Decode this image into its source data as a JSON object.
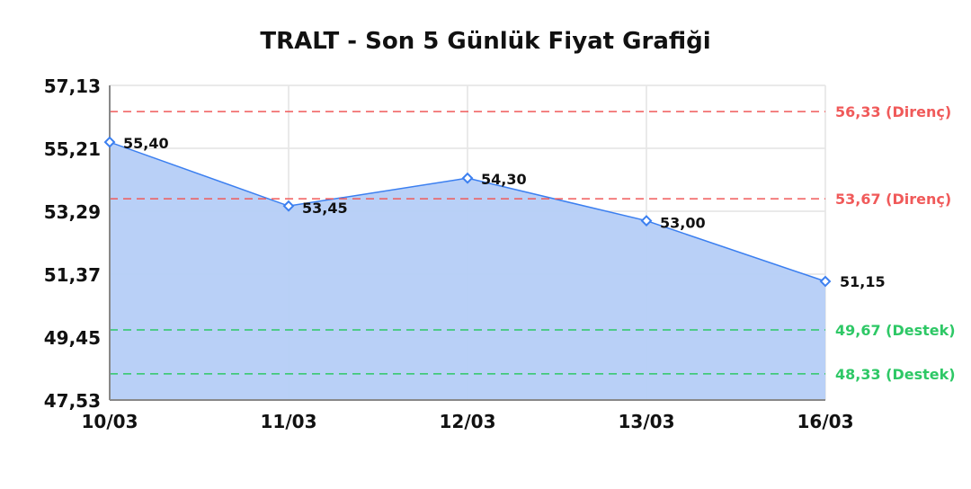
{
  "chart_data": {
    "type": "area",
    "title": "TRALT - Son 5 Günlük Fiyat Grafiği",
    "categories": [
      "10/03",
      "11/03",
      "12/03",
      "13/03",
      "16/03"
    ],
    "values": [
      55.4,
      53.45,
      54.3,
      53.0,
      51.15
    ],
    "value_labels": [
      "55,40",
      "53,45",
      "54,30",
      "53,00",
      "51,15"
    ],
    "ylim": [
      47.53,
      57.13
    ],
    "yticks": [
      47.53,
      49.45,
      51.37,
      53.29,
      55.21,
      57.13
    ],
    "ytick_labels": [
      "47,53",
      "49,45",
      "51,37",
      "53,29",
      "55,21",
      "57,13"
    ],
    "grid": true,
    "reference_lines": [
      {
        "value": 56.33,
        "label": "56,33 (Direnç)",
        "color": "#f05a5a"
      },
      {
        "value": 53.67,
        "label": "53,67 (Direnç)",
        "color": "#f05a5a"
      },
      {
        "value": 49.67,
        "label": "49,67 (Destek)",
        "color": "#2ec866"
      },
      {
        "value": 48.33,
        "label": "48,33 (Destek)",
        "color": "#2ec866"
      }
    ],
    "colors": {
      "line": "#3b7ff0",
      "fill": "#b5cdf7",
      "axis": "#888888",
      "grid": "#e4e4e4"
    }
  }
}
